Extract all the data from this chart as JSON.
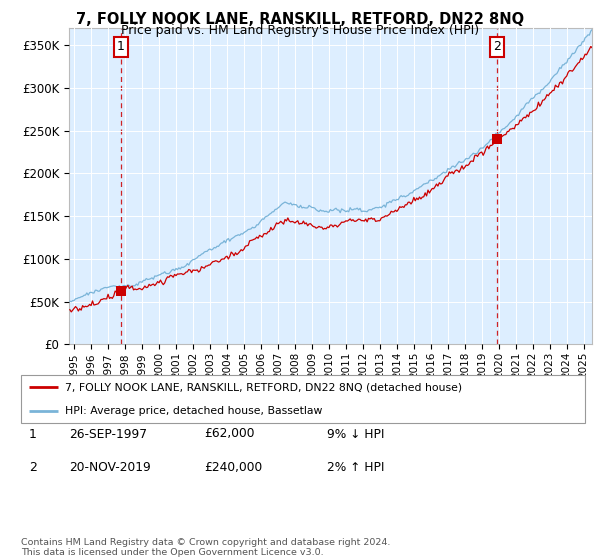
{
  "title": "7, FOLLY NOOK LANE, RANSKILL, RETFORD, DN22 8NQ",
  "subtitle": "Price paid vs. HM Land Registry's House Price Index (HPI)",
  "ylabel_ticks": [
    "£0",
    "£50K",
    "£100K",
    "£150K",
    "£200K",
    "£250K",
    "£300K",
    "£350K"
  ],
  "ytick_values": [
    0,
    50000,
    100000,
    150000,
    200000,
    250000,
    300000,
    350000
  ],
  "ylim": [
    0,
    370000
  ],
  "xlim_start": 1994.7,
  "xlim_end": 2025.5,
  "sale1_date": 1997.73,
  "sale1_price": 62000,
  "sale1_label": "1",
  "sale2_date": 2019.89,
  "sale2_price": 240000,
  "sale2_label": "2",
  "hpi_color": "#7ab4d8",
  "price_color": "#cc0000",
  "bg_color": "#ddeeff",
  "legend_line1": "7, FOLLY NOOK LANE, RANSKILL, RETFORD, DN22 8NQ (detached house)",
  "legend_line2": "HPI: Average price, detached house, Bassetlaw",
  "table_row1": [
    "1",
    "26-SEP-1997",
    "£62,000",
    "9% ↓ HPI"
  ],
  "table_row2": [
    "2",
    "20-NOV-2019",
    "£240,000",
    "2% ↑ HPI"
  ],
  "footnote": "Contains HM Land Registry data © Crown copyright and database right 2024.\nThis data is licensed under the Open Government Licence v3.0.",
  "xtick_years": [
    1995,
    1996,
    1997,
    1998,
    1999,
    2000,
    2001,
    2002,
    2003,
    2004,
    2005,
    2006,
    2007,
    2008,
    2009,
    2010,
    2011,
    2012,
    2013,
    2014,
    2015,
    2016,
    2017,
    2018,
    2019,
    2020,
    2021,
    2022,
    2023,
    2024,
    2025
  ]
}
